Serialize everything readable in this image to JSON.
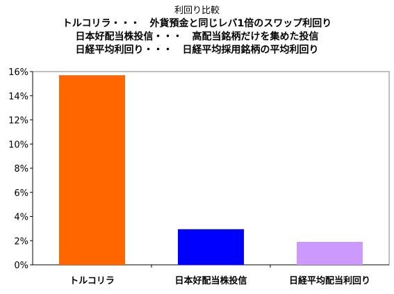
{
  "chart_data": {
    "type": "bar",
    "title": "利回り比較",
    "subtitle_lines": [
      "トルコリラ・・・　外貨預金と同じレバ1倍のスワップ利回り",
      "日本好配当株投信・・・　高配当銘柄だけを集めた投信",
      "日経平均利回り・・・　日経平均採用銘柄の平均利回り"
    ],
    "categories": [
      "トルコリラ",
      "日本好配当株投信",
      "日経平均配当利回り"
    ],
    "values": [
      15.7,
      2.95,
      1.9
    ],
    "unit": "%",
    "colors": [
      "#ff6600",
      "#0000ff",
      "#cc99ff"
    ],
    "ylim": [
      0,
      16
    ],
    "yticks": [
      0,
      2,
      4,
      6,
      8,
      10,
      12,
      14,
      16
    ],
    "ytick_labels": [
      "0%",
      "2%",
      "4%",
      "6%",
      "8%",
      "10%",
      "12%",
      "14%",
      "16%"
    ],
    "grid": false,
    "legend": "none"
  }
}
